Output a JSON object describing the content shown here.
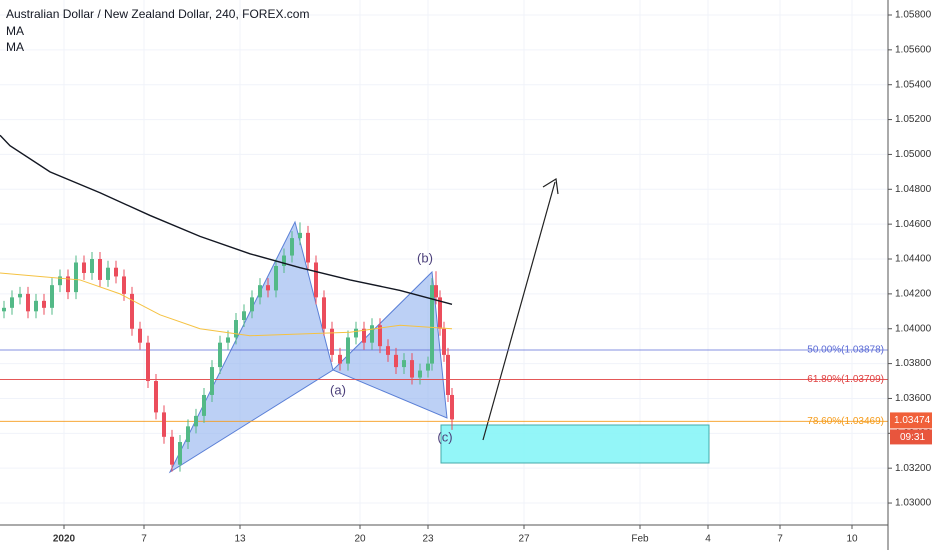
{
  "chart_data": {
    "type": "candlestick",
    "title": "Australian Dollar / New Zealand Dollar, 240, FOREX.com",
    "indicator_labels": [
      "MA",
      "MA"
    ],
    "xlim": [
      0,
      222
    ],
    "ylim": [
      1.02874,
      1.05886
    ],
    "xticks": [
      {
        "value": 16,
        "label": "2020"
      },
      {
        "value": 36,
        "label": "7"
      },
      {
        "value": 60,
        "label": "13"
      },
      {
        "value": 90,
        "label": "20"
      },
      {
        "value": 107,
        "label": "23"
      },
      {
        "value": 131,
        "label": "27"
      },
      {
        "value": 160,
        "label": "Feb"
      },
      {
        "value": 177,
        "label": "4"
      },
      {
        "value": 195,
        "label": "7"
      },
      {
        "value": 213,
        "label": "10"
      }
    ],
    "yticks": [
      {
        "value": 1.03,
        "label": "1.03000"
      },
      {
        "value": 1.032,
        "label": "1.03200"
      },
      {
        "value": 1.034,
        "label": "1.03400"
      },
      {
        "value": 1.036,
        "label": "1.03600"
      },
      {
        "value": 1.038,
        "label": "1.03800"
      },
      {
        "value": 1.04,
        "label": "1.04000"
      },
      {
        "value": 1.042,
        "label": "1.04200"
      },
      {
        "value": 1.044,
        "label": "1.04400"
      },
      {
        "value": 1.046,
        "label": "1.04600"
      },
      {
        "value": 1.048,
        "label": "1.04800"
      },
      {
        "value": 1.05,
        "label": "1.05000"
      },
      {
        "value": 1.052,
        "label": "1.05200"
      },
      {
        "value": 1.054,
        "label": "1.05400"
      },
      {
        "value": 1.056,
        "label": "1.05600"
      },
      {
        "value": 1.058,
        "label": "1.05800"
      }
    ],
    "up_color": "#53b987",
    "down_color": "#eb4d5c",
    "candles": {
      "x": [
        1,
        3,
        5,
        7,
        9,
        11,
        13,
        15,
        17,
        19,
        21,
        23,
        25,
        27,
        29,
        31,
        33,
        35,
        37,
        39,
        41,
        43,
        45,
        47,
        49,
        51,
        53,
        55,
        57,
        59,
        61,
        63,
        65,
        67,
        69,
        71,
        73,
        75,
        77,
        79,
        81,
        83,
        85,
        87,
        89,
        91,
        93,
        95,
        97,
        99,
        101,
        103,
        105,
        107,
        108,
        109,
        110,
        111,
        112,
        113
      ],
      "open": [
        1.041,
        1.0412,
        1.0418,
        1.042,
        1.041,
        1.0416,
        1.0412,
        1.0425,
        1.043,
        1.0421,
        1.0438,
        1.0432,
        1.044,
        1.0428,
        1.0435,
        1.043,
        1.042,
        1.04,
        1.0392,
        1.037,
        1.0352,
        1.0338,
        1.0322,
        1.0335,
        1.0344,
        1.035,
        1.0362,
        1.0378,
        1.0392,
        1.0395,
        1.0405,
        1.041,
        1.0418,
        1.0425,
        1.0422,
        1.0436,
        1.0442,
        1.0452,
        1.0455,
        1.0438,
        1.0418,
        1.04,
        1.0385,
        1.038,
        1.0395,
        1.04,
        1.0392,
        1.0402,
        1.039,
        1.0385,
        1.0378,
        1.0382,
        1.0372,
        1.0376,
        1.038,
        1.0425,
        1.0418,
        1.04,
        1.0385,
        1.0362
      ],
      "high": [
        1.0416,
        1.0422,
        1.0424,
        1.0424,
        1.042,
        1.042,
        1.0429,
        1.0434,
        1.0434,
        1.0442,
        1.0442,
        1.0444,
        1.0444,
        1.0439,
        1.0439,
        1.0434,
        1.0424,
        1.0404,
        1.0396,
        1.0374,
        1.0356,
        1.0342,
        1.0339,
        1.0348,
        1.0354,
        1.0366,
        1.0382,
        1.0396,
        1.0399,
        1.0409,
        1.0414,
        1.0422,
        1.0429,
        1.0429,
        1.044,
        1.0446,
        1.0456,
        1.0461,
        1.0459,
        1.0442,
        1.0422,
        1.0404,
        1.0389,
        1.0399,
        1.0404,
        1.0404,
        1.0406,
        1.0406,
        1.0394,
        1.0389,
        1.0386,
        1.0386,
        1.038,
        1.0384,
        1.0429,
        1.0433,
        1.0422,
        1.0404,
        1.0389,
        1.0366
      ],
      "low": [
        1.0406,
        1.0408,
        1.0414,
        1.0406,
        1.0406,
        1.0408,
        1.0408,
        1.0421,
        1.0417,
        1.0417,
        1.0428,
        1.0428,
        1.0424,
        1.0424,
        1.0426,
        1.0416,
        1.0396,
        1.0388,
        1.0366,
        1.0348,
        1.0334,
        1.0318,
        1.0318,
        1.0331,
        1.034,
        1.0346,
        1.0358,
        1.0374,
        1.0388,
        1.0391,
        1.0401,
        1.0406,
        1.0414,
        1.0418,
        1.0418,
        1.0432,
        1.0438,
        1.0448,
        1.0434,
        1.0414,
        1.0396,
        1.0381,
        1.0376,
        1.0376,
        1.0391,
        1.0388,
        1.0388,
        1.0386,
        1.0381,
        1.0374,
        1.0374,
        1.0368,
        1.0368,
        1.0372,
        1.0376,
        1.0414,
        1.0396,
        1.0381,
        1.0358,
        1.0342
      ],
      "close": [
        1.0412,
        1.0418,
        1.042,
        1.041,
        1.0416,
        1.0412,
        1.0425,
        1.043,
        1.0421,
        1.0438,
        1.0432,
        1.044,
        1.0428,
        1.0435,
        1.043,
        1.042,
        1.04,
        1.0392,
        1.037,
        1.0352,
        1.0338,
        1.0322,
        1.0335,
        1.0344,
        1.035,
        1.0362,
        1.0378,
        1.0392,
        1.0395,
        1.0405,
        1.041,
        1.0418,
        1.0425,
        1.0422,
        1.0436,
        1.0442,
        1.0452,
        1.0455,
        1.0438,
        1.0418,
        1.04,
        1.0385,
        1.038,
        1.0395,
        1.04,
        1.0392,
        1.0402,
        1.039,
        1.0385,
        1.0378,
        1.0382,
        1.0372,
        1.0376,
        1.038,
        1.0425,
        1.0418,
        1.04,
        1.0385,
        1.0362,
        1.0348
      ]
    },
    "series": [
      {
        "name": "MA",
        "color": "#131722",
        "x": [
          0,
          2.5,
          12.5,
          25,
          37.5,
          50,
          62.5,
          75,
          87.5,
          100,
          113
        ],
        "values": [
          1.0511,
          1.0505,
          1.049,
          1.0478,
          1.0465,
          1.0453,
          1.0443,
          1.0435,
          1.0428,
          1.0422,
          1.0414
        ]
      },
      {
        "name": "MA",
        "color": "#f5c242",
        "x": [
          0,
          10,
          20,
          30,
          40,
          50,
          62.5,
          75,
          87.5,
          100,
          113
        ],
        "values": [
          1.0432,
          1.043,
          1.0428,
          1.042,
          1.0408,
          1.04,
          1.0396,
          1.0397,
          1.0398,
          1.0402,
          1.04
        ]
      }
    ],
    "levels": [
      {
        "value": 1.03878,
        "label": "50.00%(1.03878)",
        "color": "#5b6bd6"
      },
      {
        "value": 1.03709,
        "label": "61.80%(1.03709)",
        "color": "#e04040"
      },
      {
        "value": 1.03469,
        "label": "78.60%(1.03469)",
        "color": "#f59b1a"
      }
    ],
    "last_price": 1.03474,
    "last_price_color": "#f0603a",
    "countdown": "09:31",
    "pattern_labels": [
      "(a)",
      "(b)",
      "(c)"
    ]
  }
}
